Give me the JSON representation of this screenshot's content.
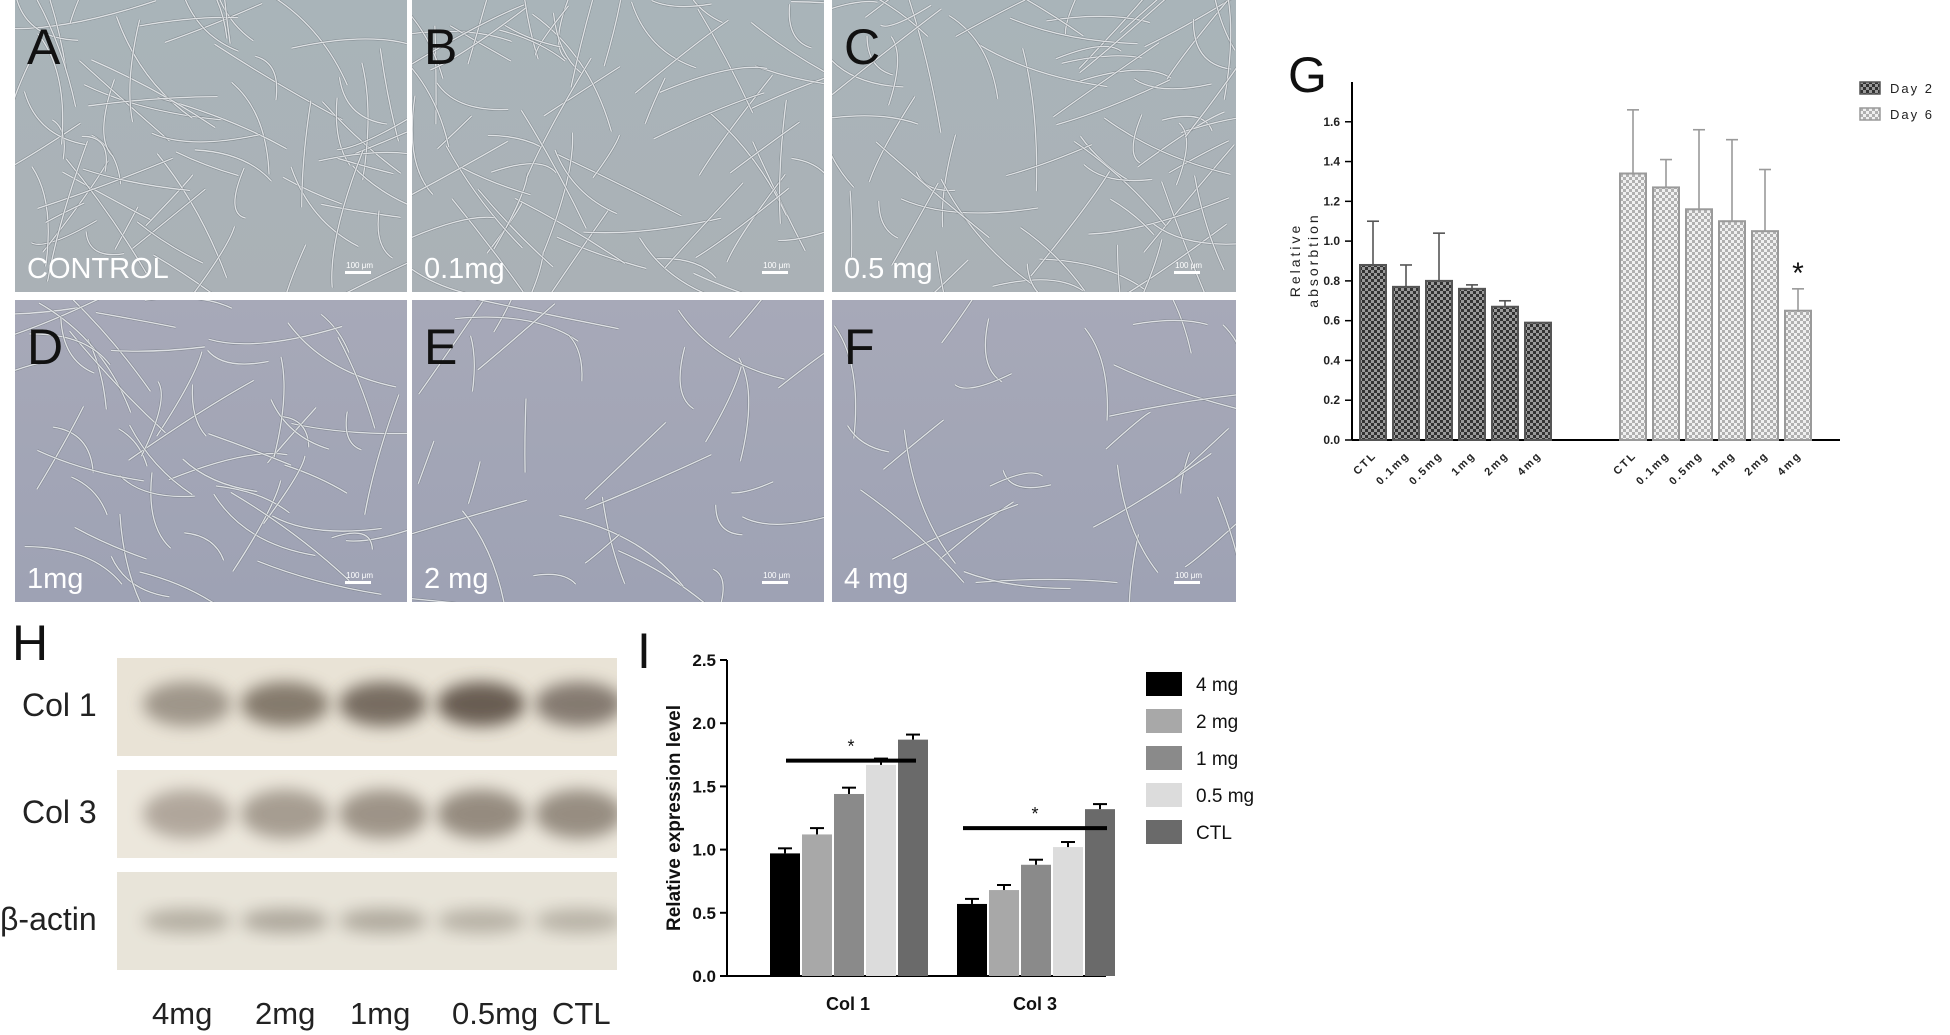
{
  "micrographs": [
    {
      "letter": "A",
      "condition": "CONTROL",
      "scale": "100 μm"
    },
    {
      "letter": "B",
      "condition": "0.1mg",
      "scale": "100 μm"
    },
    {
      "letter": "C",
      "condition": "0.5 mg",
      "scale": "100 μm"
    },
    {
      "letter": "D",
      "condition": "1mg",
      "scale": "100 μm"
    },
    {
      "letter": "E",
      "condition": "2 mg",
      "scale": "100 μm"
    },
    {
      "letter": "F",
      "condition": "4 mg",
      "scale": "100 μm"
    }
  ],
  "colors": {
    "micro_bg_top": "#a9b4b9",
    "micro_bg_bottom": "#9ea2b4",
    "cell": "#eef1f3",
    "day2": "#555555",
    "day6": "#9a9a9a",
    "bar_4mg": "#000000",
    "bar_2mg": "#a8a8a8",
    "bar_1mg": "#8a8a8a",
    "bar_05mg": "#dcdcdc",
    "bar_ctl": "#6a6a6a"
  },
  "blot": {
    "letter": "H",
    "rows": [
      {
        "label": "Col 1"
      },
      {
        "label": "Col 3"
      },
      {
        "label": "β-actin"
      }
    ],
    "lanes": [
      "4mg",
      "2mg",
      "1mg",
      "0.5mg",
      "CTL"
    ]
  },
  "chart_data": [
    {
      "panel": "G",
      "type": "bar",
      "ylabel": "Relative absorbtion",
      "ylim": [
        0,
        1.8
      ],
      "yticks": [
        "0.0",
        "0.2",
        "0.4",
        "0.6",
        "0.8",
        "1.0",
        "1.2",
        "1.4",
        "1.6"
      ],
      "categories": [
        "CTL",
        "0.1mg",
        "0.5mg",
        "1mg",
        "2mg",
        "4mg"
      ],
      "series": [
        {
          "name": "Day 2",
          "values": [
            0.88,
            0.77,
            0.8,
            0.76,
            0.67,
            0.59
          ],
          "errors": [
            0.22,
            0.11,
            0.24,
            0.02,
            0.03,
            0.0
          ]
        },
        {
          "name": "Day 6",
          "values": [
            1.34,
            1.27,
            1.16,
            1.1,
            1.05,
            0.65
          ],
          "errors": [
            0.32,
            0.14,
            0.4,
            0.41,
            0.31,
            0.11
          ]
        }
      ],
      "annotations": [
        {
          "series": "Day 6",
          "category": "4mg",
          "text": "*"
        }
      ],
      "legend": "top-right"
    },
    {
      "panel": "I",
      "type": "bar",
      "ylabel": "Relative expression level",
      "ylim": [
        0,
        2.5
      ],
      "yticks": [
        "0.0",
        "0.5",
        "1.0",
        "1.5",
        "2.0",
        "2.5"
      ],
      "categories": [
        "Col 1",
        "Col 3"
      ],
      "series": [
        {
          "name": "4 mg",
          "values": [
            0.97,
            0.57
          ],
          "errors": [
            0.04,
            0.04
          ]
        },
        {
          "name": "2 mg",
          "values": [
            1.12,
            0.68
          ],
          "errors": [
            0.05,
            0.04
          ]
        },
        {
          "name": "1 mg",
          "values": [
            1.44,
            0.88
          ],
          "errors": [
            0.05,
            0.04
          ]
        },
        {
          "name": "0.5 mg",
          "values": [
            1.67,
            1.02
          ],
          "errors": [
            0.05,
            0.04
          ]
        },
        {
          "name": "CTL",
          "values": [
            1.87,
            1.32
          ],
          "errors": [
            0.04,
            0.04
          ]
        }
      ],
      "annotations": [
        {
          "text": "*",
          "group": "Col 1"
        },
        {
          "text": "*",
          "group": "Col 3"
        }
      ],
      "legend": "right"
    }
  ]
}
